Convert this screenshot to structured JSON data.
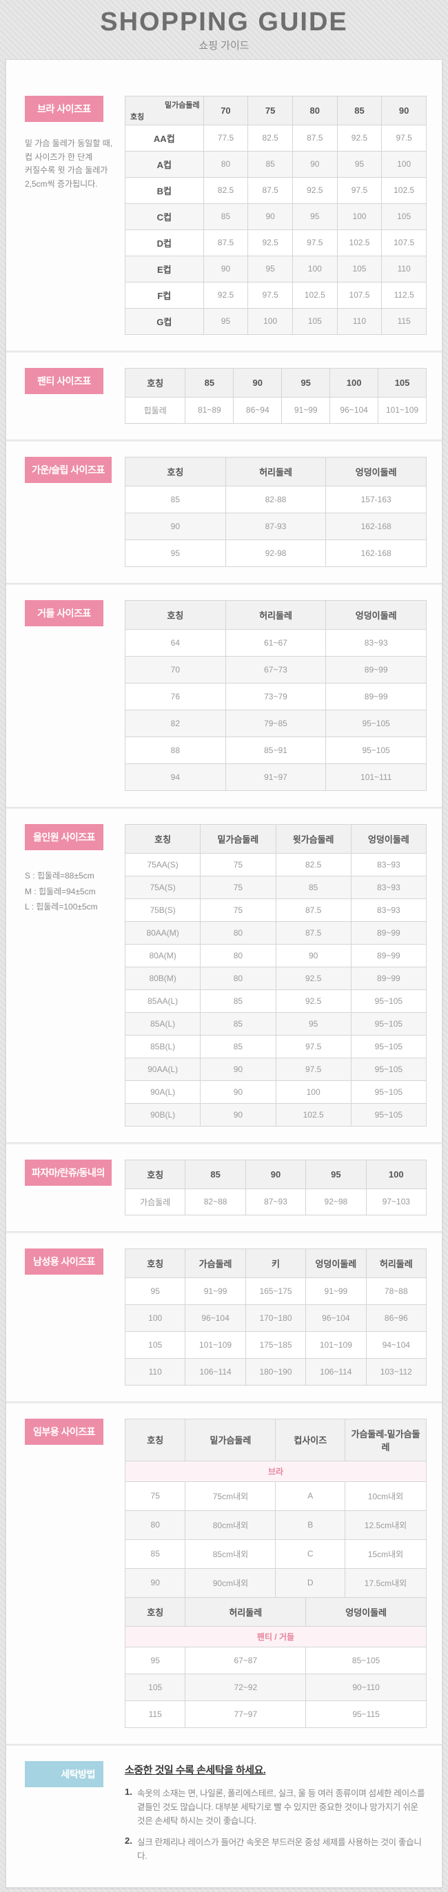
{
  "page": {
    "title": "SHOPPING GUIDE",
    "subtitle": "쇼핑 가이드"
  },
  "colors": {
    "accent_pink": "#ee8da8",
    "accent_blue": "#a6d3e2"
  },
  "bra": {
    "label": "브라 사이즈표",
    "note_lines": [
      "밑 가슴 둘레가 동일할 때,",
      "컵 사이즈가 한 단계",
      "커질수록 윗 가슴 둘레가",
      "2,5cm씩 증가됩니다."
    ],
    "corner": {
      "top": "밑가슴둘레",
      "bottom": "호칭"
    },
    "columns": [
      "70",
      "75",
      "80",
      "85",
      "90"
    ],
    "rows": [
      [
        "AA컵",
        "77.5",
        "82.5",
        "87.5",
        "92.5",
        "97.5"
      ],
      [
        "A컵",
        "80",
        "85",
        "90",
        "95",
        "100"
      ],
      [
        "B컵",
        "82.5",
        "87.5",
        "92.5",
        "97.5",
        "102.5"
      ],
      [
        "C컵",
        "85",
        "90",
        "95",
        "100",
        "105"
      ],
      [
        "D컵",
        "87.5",
        "92.5",
        "97.5",
        "102.5",
        "107.5"
      ],
      [
        "E컵",
        "90",
        "95",
        "100",
        "105",
        "110"
      ],
      [
        "F컵",
        "92.5",
        "97.5",
        "102.5",
        "107.5",
        "112.5"
      ],
      [
        "G컵",
        "95",
        "100",
        "105",
        "110",
        "115"
      ]
    ]
  },
  "panty": {
    "label": "팬티 사이즈표",
    "columns": [
      "호칭",
      "85",
      "90",
      "95",
      "100",
      "105"
    ],
    "rows": [
      [
        "힙둘레",
        "81~89",
        "86~94",
        "91~99",
        "96~104",
        "101~109"
      ]
    ]
  },
  "gown": {
    "label": "가운/슬립 사이즈표",
    "columns": [
      "호칭",
      "허리둘레",
      "엉덩이둘레"
    ],
    "rows": [
      [
        "85",
        "82-88",
        "157-163"
      ],
      [
        "90",
        "87-93",
        "162-168"
      ],
      [
        "95",
        "92-98",
        "162-168"
      ]
    ]
  },
  "girdle": {
    "label": "거들 사이즈표",
    "columns": [
      "호칭",
      "허리둘레",
      "엉덩이둘레"
    ],
    "rows": [
      [
        "64",
        "61~67",
        "83~93"
      ],
      [
        "70",
        "67~73",
        "89~99"
      ],
      [
        "76",
        "73~79",
        "89~99"
      ],
      [
        "82",
        "79~85",
        "95~105"
      ],
      [
        "88",
        "85~91",
        "95~105"
      ],
      [
        "94",
        "91~97",
        "101~111"
      ]
    ]
  },
  "allinone": {
    "label": "올인원 사이즈표",
    "note_lines": [
      "S : 힙둘레=88±5cm",
      "M : 힙둘레=94±5cm",
      "L : 힙둘레=100±5cm"
    ],
    "columns": [
      "호칭",
      "밑가슴둘레",
      "윗가슴둘레",
      "엉덩이둘레"
    ],
    "rows": [
      [
        "75AA(S)",
        "75",
        "82.5",
        "83~93"
      ],
      [
        "75A(S)",
        "75",
        "85",
        "83~93"
      ],
      [
        "75B(S)",
        "75",
        "87.5",
        "83~93"
      ],
      [
        "80AA(M)",
        "80",
        "87.5",
        "89~99"
      ],
      [
        "80A(M)",
        "80",
        "90",
        "89~99"
      ],
      [
        "80B(M)",
        "80",
        "92.5",
        "89~99"
      ],
      [
        "85AA(L)",
        "85",
        "92.5",
        "95~105"
      ],
      [
        "85A(L)",
        "85",
        "95",
        "95~105"
      ],
      [
        "85B(L)",
        "85",
        "97.5",
        "95~105"
      ],
      [
        "90AA(L)",
        "90",
        "97.5",
        "95~105"
      ],
      [
        "90A(L)",
        "90",
        "100",
        "95~105"
      ],
      [
        "90B(L)",
        "90",
        "102.5",
        "95~105"
      ]
    ]
  },
  "pajama": {
    "label": "파자마/란쥬/동내의",
    "columns": [
      "호칭",
      "85",
      "90",
      "95",
      "100"
    ],
    "rows": [
      [
        "가슴둘레",
        "82~88",
        "87~93",
        "92~98",
        "97~103"
      ]
    ]
  },
  "men": {
    "label": "남성용 사이즈표",
    "columns": [
      "호칭",
      "가슴둘레",
      "키",
      "엉덩이둘레",
      "허리둘레"
    ],
    "rows": [
      [
        "95",
        "91~99",
        "165~175",
        "91~99",
        "78~88"
      ],
      [
        "100",
        "96~104",
        "170~180",
        "96~104",
        "86~96"
      ],
      [
        "105",
        "101~109",
        "175~185",
        "101~109",
        "94~104"
      ],
      [
        "110",
        "106~114",
        "180~190",
        "106~114",
        "103~112"
      ]
    ]
  },
  "maternity": {
    "label": "임부용 사이즈표",
    "bra_banner": "브라",
    "bra_columns": [
      "호칭",
      "밑가슴둘레",
      "컵사이즈",
      "가슴둘레-밑가슴둘레"
    ],
    "bra_rows": [
      [
        "75",
        "75cm내외",
        "A",
        "10cm내외"
      ],
      [
        "80",
        "80cm내외",
        "B",
        "12.5cm내외"
      ],
      [
        "85",
        "85cm내외",
        "C",
        "15cm내외"
      ],
      [
        "90",
        "90cm내외",
        "D",
        "17.5cm내외"
      ]
    ],
    "panty_banner": "팬티 / 거들",
    "panty_columns": [
      "호칭",
      "허리둘레",
      "엉덩이둘레"
    ],
    "panty_rows": [
      [
        "95",
        "67~87",
        "85~105"
      ],
      [
        "105",
        "72~92",
        "90~110"
      ],
      [
        "115",
        "77~97",
        "95~115"
      ]
    ]
  },
  "wash": {
    "label": "세탁방법",
    "title": "소중한 것일 수록 손세탁을 하세요.",
    "items": [
      {
        "num": "1.",
        "text": "속옷의 소재는 면, 나일론, 폴리에스테르, 실크, 울 등 여러 종류이며 섬세한 레이스를 곁들인 것도 많습니다. 대부분 세탁기로 빨 수 있지만 중요한 것이나 망가지기 쉬운 것은 손세탁 하시는 것이 좋습니다."
      },
      {
        "num": "2.",
        "text": "실크 란제리나 레이스가 들어간 속옷은 부드러운 중성 세제를 사용하는 것이 좋습니다."
      }
    ]
  }
}
